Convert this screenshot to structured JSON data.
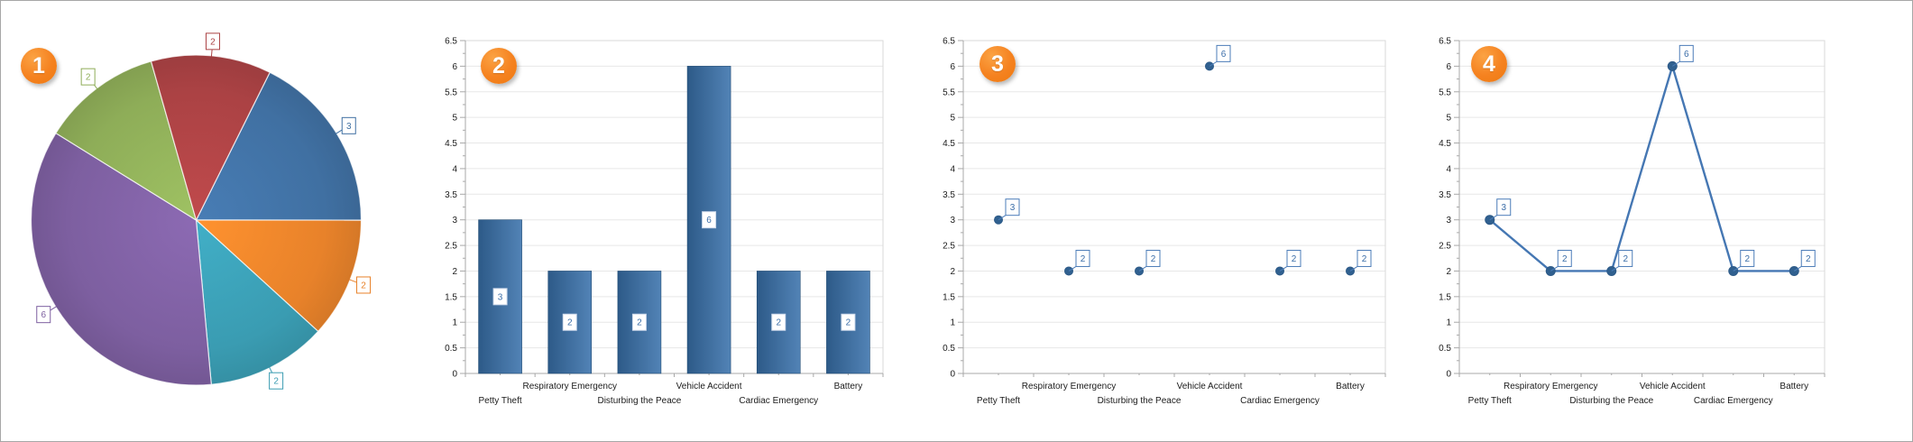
{
  "page": {
    "background_color": "#ffffff",
    "border_color": "#a6a6a6"
  },
  "style": {
    "badge_fill": "#f5821f",
    "badge_text_color": "#ffffff",
    "grid_color": "#e7e7e7",
    "axis_color": "#a8a8a8",
    "plot_border_color": "#d9d9d9",
    "tick_label_color": "#1b1b1b",
    "series_color": "#3c6b9e",
    "line_color": "#4577b3",
    "marker_color": "#30608f",
    "marker_edge_color": "#2d5a88",
    "bar_gradient_left": "#2d5a88",
    "bar_gradient_right": "#5283b6",
    "bar_edge_color": "#1f4a73",
    "value_box_fill": "#ffffff",
    "value_box_border": "#4b7cb8",
    "value_box_text": "#3a6da8"
  },
  "chart_data": [
    {
      "badge": "1",
      "type": "pie",
      "categories": [
        "Petty Theft",
        "Respiratory Emergency",
        "Disturbing the Peace",
        "Vehicle Accident",
        "Cardiac Emergency",
        "Battery"
      ],
      "values": [
        3,
        2,
        2,
        6,
        2,
        2
      ],
      "slice_colors": [
        "#4070a2",
        "#e8822a",
        "#3a9cb2",
        "#7d5fa0",
        "#8ead58",
        "#ab4244"
      ],
      "data_labels": [
        "3",
        "2",
        "2",
        "6",
        "2",
        "2"
      ],
      "start_angle_deg": 63.5,
      "direction": "clockwise",
      "legend": "none",
      "label_style": "callout-box"
    },
    {
      "badge": "2",
      "type": "bar",
      "categories": [
        "Petty Theft",
        "Respiratory Emergency",
        "Disturbing the Peace",
        "Vehicle Accident",
        "Cardiac Emergency",
        "Battery"
      ],
      "values": [
        3,
        2,
        2,
        6,
        2,
        2
      ],
      "data_labels": [
        "3",
        "2",
        "2",
        "6",
        "2",
        "2"
      ],
      "ylim": [
        0,
        6.5
      ],
      "ytick_step": 0.5,
      "ytick_labels": [
        "0",
        "0.5",
        "1",
        "1.5",
        "2",
        "2.5",
        "3",
        "3.5",
        "4",
        "4.5",
        "5",
        "5.5",
        "6",
        "6.5"
      ],
      "grid": true,
      "legend": "none",
      "xlabel_layout": "staggered"
    },
    {
      "badge": "3",
      "type": "scatter",
      "categories": [
        "Petty Theft",
        "Respiratory Emergency",
        "Disturbing the Peace",
        "Vehicle Accident",
        "Cardiac Emergency",
        "Battery"
      ],
      "values": [
        3,
        2,
        2,
        6,
        2,
        2
      ],
      "data_labels": [
        "3",
        "2",
        "2",
        "6",
        "2",
        "2"
      ],
      "ylim": [
        0,
        6.5
      ],
      "ytick_step": 0.5,
      "ytick_labels": [
        "0",
        "0.5",
        "1",
        "1.5",
        "2",
        "2.5",
        "3",
        "3.5",
        "4",
        "4.5",
        "5",
        "5.5",
        "6",
        "6.5"
      ],
      "grid": true,
      "legend": "none",
      "xlabel_layout": "staggered"
    },
    {
      "badge": "4",
      "type": "line",
      "categories": [
        "Petty Theft",
        "Respiratory Emergency",
        "Disturbing the Peace",
        "Vehicle Accident",
        "Cardiac Emergency",
        "Battery"
      ],
      "values": [
        3,
        2,
        2,
        6,
        2,
        2
      ],
      "data_labels": [
        "3",
        "2",
        "2",
        "6",
        "2",
        "2"
      ],
      "ylim": [
        0,
        6.5
      ],
      "ytick_step": 0.5,
      "ytick_labels": [
        "0",
        "0.5",
        "1",
        "1.5",
        "2",
        "2.5",
        "3",
        "3.5",
        "4",
        "4.5",
        "5",
        "5.5",
        "6",
        "6.5"
      ],
      "grid": true,
      "legend": "none",
      "xlabel_layout": "staggered"
    }
  ]
}
